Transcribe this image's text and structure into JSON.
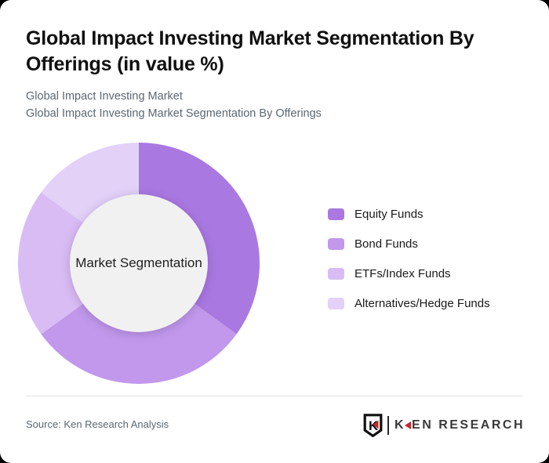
{
  "page": {
    "background": "#000000",
    "card_background": "#ffffff"
  },
  "header": {
    "title": "Global Impact Investing Market Segmentation By Offerings (in value %)",
    "subtitles": [
      "Global Impact Investing Market",
      "Global Impact Investing Market Segmentation By Offerings"
    ]
  },
  "chart_data": {
    "type": "pie",
    "subtype": "donut",
    "title": "Global Impact Investing Market Segmentation By Offerings (in value %)",
    "center_label": "Market Segmentation",
    "units": "value %",
    "start_angle_deg": 0,
    "direction": "clockwise",
    "legend_position": "right",
    "data_labels_shown": false,
    "series": [
      {
        "name": "Equity Funds",
        "value": 35,
        "color": "#a978e1"
      },
      {
        "name": "Bond Funds",
        "value": 30,
        "color": "#c198eb"
      },
      {
        "name": "ETFs/Index Funds",
        "value": 20,
        "color": "#d9bcf4"
      },
      {
        "name": "Alternatives/Hedge Funds",
        "value": 15,
        "color": "#e3d1f8"
      }
    ],
    "inner_circle_color": "#f1f1f2"
  },
  "footer": {
    "source": "Source: Ken Research Analysis",
    "logo": {
      "mark_letter": "K",
      "name_first_letter": "K",
      "name_rest": "EN RESEARCH",
      "accent_color": "#c9252b",
      "text_color": "#3a3a3a"
    }
  }
}
